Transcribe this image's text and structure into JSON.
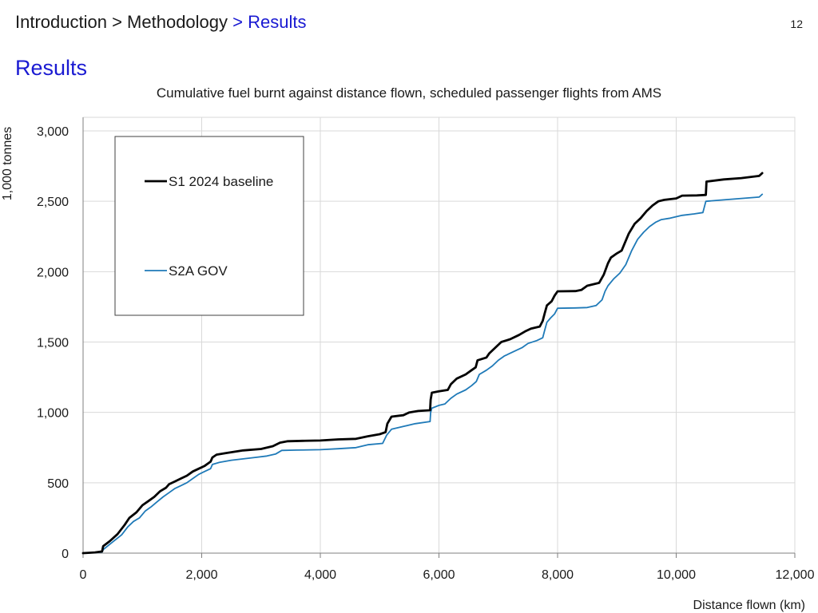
{
  "header": {
    "breadcrumb": {
      "intro": "Introduction",
      "separator1": " > ",
      "methodology": "Methodology",
      "separator2": " > ",
      "current": "Results"
    },
    "page_number": "12",
    "title": "Results"
  },
  "chart_data": {
    "type": "line",
    "title": "Cumulative fuel burnt against distance flown, scheduled passenger flights from AMS",
    "xlabel": "Distance flown (km)",
    "ylabel": "1,000 tonnes",
    "xlim": [
      0,
      12000
    ],
    "ylim": [
      0,
      3000
    ],
    "x_ticks": [
      0,
      2000,
      4000,
      6000,
      8000,
      10000,
      12000
    ],
    "x_tick_labels": [
      "0",
      "2,000",
      "4,000",
      "6,000",
      "8,000",
      "10,000",
      "12,000"
    ],
    "y_ticks": [
      0,
      500,
      1000,
      1500,
      2000,
      2500,
      3000
    ],
    "y_tick_labels": [
      "0",
      "500",
      "1,000",
      "1,500",
      "2,000",
      "2,500",
      "3,000"
    ],
    "grid": true,
    "legend_position": "top-left",
    "series": [
      {
        "name": "S1 2024 baseline",
        "color": "#000000",
        "points": [
          [
            0,
            0
          ],
          [
            200,
            5
          ],
          [
            320,
            12
          ],
          [
            340,
            50
          ],
          [
            450,
            85
          ],
          [
            580,
            135
          ],
          [
            700,
            200
          ],
          [
            780,
            250
          ],
          [
            900,
            290
          ],
          [
            1000,
            340
          ],
          [
            1100,
            370
          ],
          [
            1200,
            400
          ],
          [
            1300,
            440
          ],
          [
            1400,
            465
          ],
          [
            1450,
            490
          ],
          [
            1550,
            510
          ],
          [
            1650,
            530
          ],
          [
            1750,
            550
          ],
          [
            1850,
            580
          ],
          [
            1950,
            600
          ],
          [
            2050,
            620
          ],
          [
            2150,
            650
          ],
          [
            2180,
            680
          ],
          [
            2250,
            700
          ],
          [
            2400,
            710
          ],
          [
            2550,
            720
          ],
          [
            2700,
            730
          ],
          [
            3000,
            740
          ],
          [
            3200,
            760
          ],
          [
            3320,
            785
          ],
          [
            3450,
            795
          ],
          [
            3700,
            798
          ],
          [
            4000,
            800
          ],
          [
            4300,
            808
          ],
          [
            4600,
            812
          ],
          [
            4800,
            830
          ],
          [
            5000,
            845
          ],
          [
            5100,
            860
          ],
          [
            5130,
            920
          ],
          [
            5200,
            970
          ],
          [
            5400,
            980
          ],
          [
            5500,
            1000
          ],
          [
            5650,
            1010
          ],
          [
            5850,
            1015
          ],
          [
            5860,
            1090
          ],
          [
            5880,
            1140
          ],
          [
            6000,
            1150
          ],
          [
            6150,
            1160
          ],
          [
            6200,
            1200
          ],
          [
            6300,
            1240
          ],
          [
            6450,
            1270
          ],
          [
            6550,
            1300
          ],
          [
            6620,
            1320
          ],
          [
            6650,
            1370
          ],
          [
            6800,
            1390
          ],
          [
            6850,
            1420
          ],
          [
            6950,
            1460
          ],
          [
            7050,
            1500
          ],
          [
            7200,
            1520
          ],
          [
            7350,
            1550
          ],
          [
            7450,
            1575
          ],
          [
            7550,
            1595
          ],
          [
            7700,
            1610
          ],
          [
            7750,
            1650
          ],
          [
            7780,
            1700
          ],
          [
            7820,
            1760
          ],
          [
            7900,
            1790
          ],
          [
            7950,
            1830
          ],
          [
            8000,
            1860
          ],
          [
            8300,
            1862
          ],
          [
            8400,
            1870
          ],
          [
            8500,
            1900
          ],
          [
            8700,
            1920
          ],
          [
            8780,
            1980
          ],
          [
            8850,
            2060
          ],
          [
            8900,
            2100
          ],
          [
            9000,
            2130
          ],
          [
            9080,
            2150
          ],
          [
            9130,
            2200
          ],
          [
            9200,
            2270
          ],
          [
            9300,
            2340
          ],
          [
            9400,
            2380
          ],
          [
            9500,
            2430
          ],
          [
            9600,
            2470
          ],
          [
            9700,
            2500
          ],
          [
            9800,
            2510
          ],
          [
            10000,
            2520
          ],
          [
            10100,
            2540
          ],
          [
            10350,
            2542
          ],
          [
            10500,
            2545
          ],
          [
            10510,
            2640
          ],
          [
            10800,
            2655
          ],
          [
            11100,
            2665
          ],
          [
            11400,
            2680
          ],
          [
            11450,
            2700
          ]
        ]
      },
      {
        "name": "S2A GOV",
        "color": "#1f7ab8",
        "points": [
          [
            0,
            0
          ],
          [
            200,
            3
          ],
          [
            320,
            8
          ],
          [
            340,
            25
          ],
          [
            500,
            80
          ],
          [
            650,
            130
          ],
          [
            750,
            185
          ],
          [
            850,
            225
          ],
          [
            950,
            250
          ],
          [
            1050,
            300
          ],
          [
            1150,
            330
          ],
          [
            1250,
            365
          ],
          [
            1350,
            400
          ],
          [
            1450,
            430
          ],
          [
            1550,
            460
          ],
          [
            1650,
            480
          ],
          [
            1750,
            500
          ],
          [
            1850,
            530
          ],
          [
            1950,
            560
          ],
          [
            2050,
            580
          ],
          [
            2150,
            600
          ],
          [
            2180,
            630
          ],
          [
            2300,
            645
          ],
          [
            2500,
            660
          ],
          [
            2700,
            670
          ],
          [
            2900,
            680
          ],
          [
            3100,
            690
          ],
          [
            3250,
            705
          ],
          [
            3350,
            730
          ],
          [
            3600,
            732
          ],
          [
            4000,
            735
          ],
          [
            4300,
            742
          ],
          [
            4600,
            750
          ],
          [
            4800,
            770
          ],
          [
            5050,
            780
          ],
          [
            5120,
            840
          ],
          [
            5200,
            880
          ],
          [
            5400,
            900
          ],
          [
            5600,
            920
          ],
          [
            5850,
            935
          ],
          [
            5860,
            1000
          ],
          [
            5880,
            1030
          ],
          [
            6000,
            1050
          ],
          [
            6100,
            1060
          ],
          [
            6200,
            1100
          ],
          [
            6300,
            1130
          ],
          [
            6450,
            1160
          ],
          [
            6550,
            1190
          ],
          [
            6630,
            1220
          ],
          [
            6680,
            1270
          ],
          [
            6800,
            1300
          ],
          [
            6900,
            1330
          ],
          [
            7000,
            1370
          ],
          [
            7100,
            1400
          ],
          [
            7200,
            1420
          ],
          [
            7300,
            1440
          ],
          [
            7400,
            1460
          ],
          [
            7500,
            1490
          ],
          [
            7650,
            1510
          ],
          [
            7750,
            1530
          ],
          [
            7780,
            1580
          ],
          [
            7820,
            1640
          ],
          [
            7880,
            1670
          ],
          [
            7950,
            1700
          ],
          [
            8000,
            1740
          ],
          [
            8300,
            1742
          ],
          [
            8500,
            1745
          ],
          [
            8650,
            1760
          ],
          [
            8750,
            1800
          ],
          [
            8800,
            1860
          ],
          [
            8850,
            1900
          ],
          [
            8950,
            1950
          ],
          [
            9050,
            1990
          ],
          [
            9150,
            2050
          ],
          [
            9250,
            2150
          ],
          [
            9350,
            2230
          ],
          [
            9450,
            2280
          ],
          [
            9550,
            2320
          ],
          [
            9650,
            2350
          ],
          [
            9750,
            2370
          ],
          [
            9900,
            2380
          ],
          [
            10100,
            2400
          ],
          [
            10300,
            2410
          ],
          [
            10450,
            2420
          ],
          [
            10500,
            2500
          ],
          [
            10800,
            2510
          ],
          [
            11100,
            2520
          ],
          [
            11400,
            2530
          ],
          [
            11450,
            2550
          ]
        ]
      }
    ]
  }
}
